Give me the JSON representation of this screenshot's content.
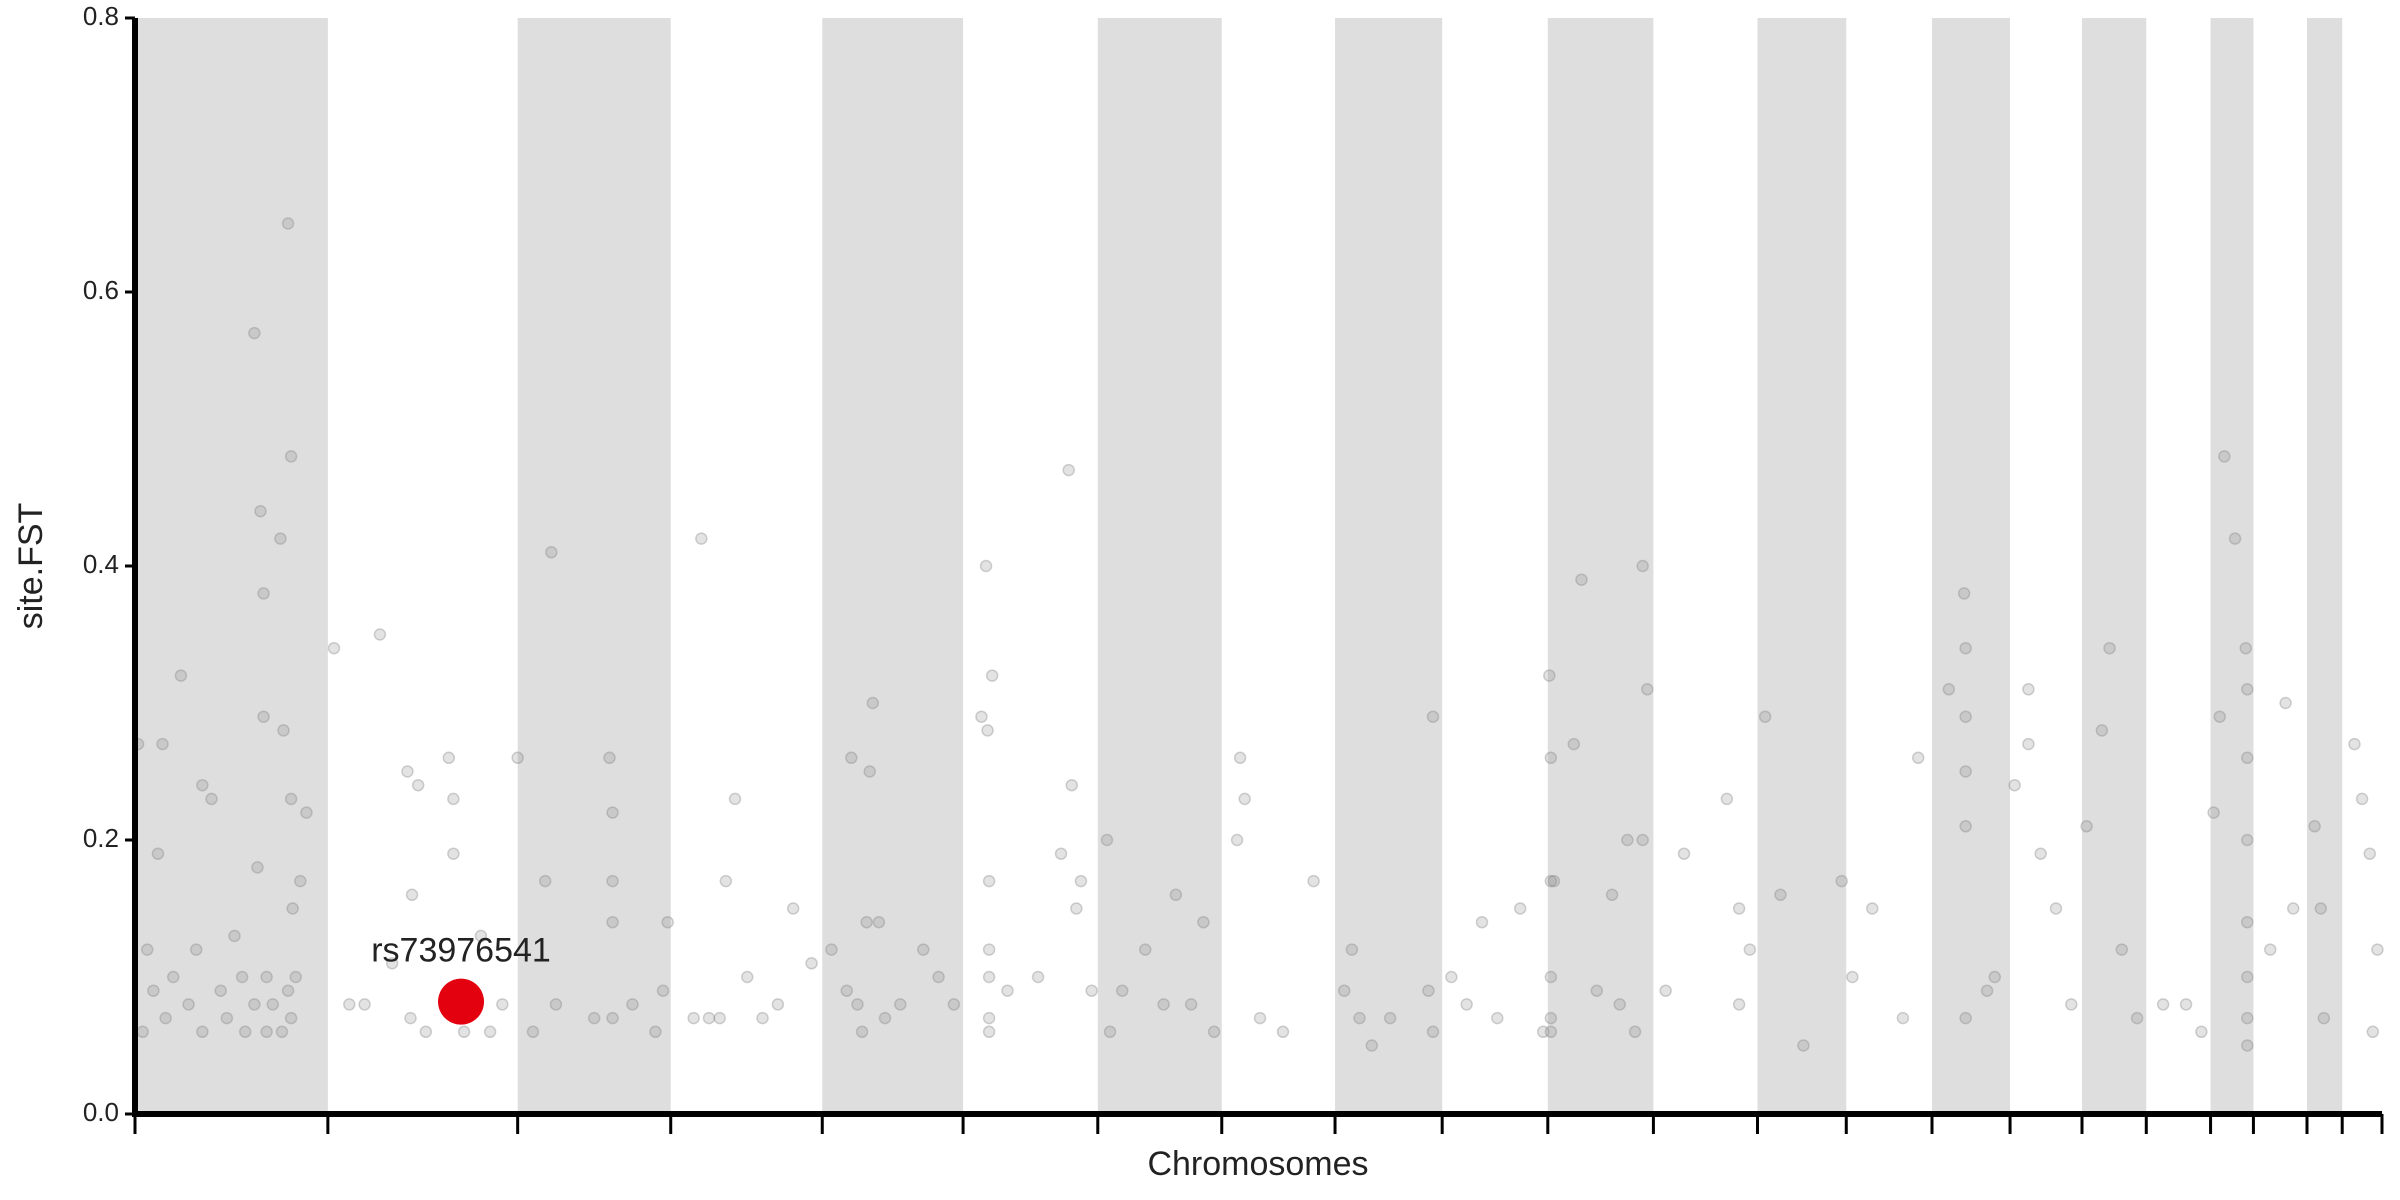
{
  "chart_data": {
    "type": "scatter",
    "xlabel": "Chromosomes",
    "ylabel": "site.FST",
    "xlim": [
      0,
      1468
    ],
    "ylim": [
      0,
      0.8
    ],
    "xticks": [
      0,
      126,
      250,
      350,
      449,
      541,
      629,
      710,
      784,
      854,
      923,
      992,
      1060,
      1118,
      1174,
      1225,
      1272,
      1314,
      1356,
      1384,
      1419,
      1442,
      1468
    ],
    "yticks": [
      {
        "value": 0,
        "label": "0.0"
      },
      0.2,
      0.4,
      0.6,
      0.8
    ],
    "color": "#808080",
    "band_color": "#dedede",
    "x": [
      2,
      5,
      8,
      12,
      15,
      18,
      20,
      25,
      30,
      35,
      40,
      44,
      44,
      50,
      56,
      60,
      65,
      70,
      78,
      80,
      82,
      84,
      86,
      86,
      84,
      90,
      95,
      97,
      100,
      102,
      102,
      102,
      103,
      105,
      108,
      112,
      100,
      96,
      78,
      72,
      130,
      140,
      150,
      160,
      168,
      178,
      180,
      181,
      185,
      190,
      205,
      208,
      208,
      215,
      226,
      232,
      240,
      250,
      260,
      268,
      272,
      275,
      300,
      310,
      312,
      312,
      312,
      312,
      325,
      340,
      345,
      348,
      365,
      370,
      375,
      382,
      392,
      386,
      400,
      410,
      420,
      430,
      442,
      455,
      465,
      468,
      472,
      475,
      478,
      480,
      482,
      486,
      490,
      500,
      515,
      525,
      535,
      553,
      556,
      557,
      558,
      558,
      558,
      558,
      558,
      560,
      570,
      590,
      605,
      610,
      612,
      615,
      618,
      625,
      635,
      637,
      645,
      660,
      672,
      680,
      690,
      698,
      705,
      722,
      720,
      725,
      735,
      750,
      770,
      790,
      795,
      800,
      808,
      820,
      845,
      848,
      848,
      860,
      870,
      880,
      890,
      905,
      920,
      924,
      925,
      925,
      925,
      925,
      925,
      927,
      940,
      945,
      955,
      965,
      970,
      975,
      985,
      988,
      985,
      980,
      1000,
      1012,
      1040,
      1048,
      1048,
      1055,
      1065,
      1075,
      1090,
      1115,
      1122,
      1135,
      1155,
      1165,
      1185,
      1195,
      1196,
      1196,
      1196,
      1196,
      1196,
      1210,
      1215,
      1228,
      1237,
      1237,
      1245,
      1255,
      1265,
      1275,
      1285,
      1290,
      1298,
      1308,
      1325,
      1340,
      1350,
      1358,
      1362,
      1365,
      1372,
      1379,
      1380,
      1380,
      1380,
      1380,
      1380,
      1380,
      1380,
      1395,
      1405,
      1410,
      1424,
      1428,
      1430,
      1450,
      1455,
      1460,
      1462,
      1465
    ],
    "values": [
      0.27,
      0.06,
      0.12,
      0.09,
      0.19,
      0.27,
      0.07,
      0.1,
      0.32,
      0.08,
      0.12,
      0.24,
      0.06,
      0.23,
      0.09,
      0.07,
      0.13,
      0.1,
      0.57,
      0.18,
      0.44,
      0.38,
      0.1,
      0.06,
      0.29,
      0.08,
      0.42,
      0.28,
      0.65,
      0.48,
      0.23,
      0.07,
      0.15,
      0.1,
      0.17,
      0.22,
      0.09,
      0.06,
      0.08,
      0.06,
      0.34,
      0.08,
      0.08,
      0.35,
      0.11,
      0.25,
      0.07,
      0.16,
      0.24,
      0.06,
      0.26,
      0.23,
      0.19,
      0.06,
      0.13,
      0.06,
      0.08,
      0.26,
      0.06,
      0.17,
      0.41,
      0.08,
      0.07,
      0.26,
      0.22,
      0.17,
      0.14,
      0.07,
      0.08,
      0.06,
      0.09,
      0.14,
      0.07,
      0.42,
      0.07,
      0.07,
      0.23,
      0.17,
      0.1,
      0.07,
      0.08,
      0.15,
      0.11,
      0.12,
      0.09,
      0.26,
      0.08,
      0.06,
      0.14,
      0.25,
      0.3,
      0.14,
      0.07,
      0.08,
      0.12,
      0.1,
      0.08,
      0.29,
      0.4,
      0.28,
      0.17,
      0.12,
      0.1,
      0.07,
      0.06,
      0.32,
      0.09,
      0.1,
      0.19,
      0.47,
      0.24,
      0.15,
      0.17,
      0.09,
      0.2,
      0.06,
      0.09,
      0.12,
      0.08,
      0.16,
      0.08,
      0.14,
      0.06,
      0.26,
      0.2,
      0.23,
      0.07,
      0.06,
      0.17,
      0.09,
      0.12,
      0.07,
      0.05,
      0.07,
      0.09,
      0.29,
      0.06,
      0.1,
      0.08,
      0.14,
      0.07,
      0.15,
      0.06,
      0.32,
      0.26,
      0.17,
      0.1,
      0.07,
      0.06,
      0.17,
      0.27,
      0.39,
      0.09,
      0.16,
      0.08,
      0.2,
      0.4,
      0.31,
      0.2,
      0.06,
      0.09,
      0.19,
      0.23,
      0.15,
      0.08,
      0.12,
      0.29,
      0.16,
      0.05,
      0.17,
      0.1,
      0.15,
      0.07,
      0.26,
      0.31,
      0.38,
      0.34,
      0.29,
      0.25,
      0.21,
      0.07,
      0.09,
      0.1,
      0.24,
      0.27,
      0.31,
      0.19,
      0.15,
      0.08,
      0.21,
      0.28,
      0.34,
      0.12,
      0.07,
      0.08,
      0.08,
      0.06,
      0.22,
      0.29,
      0.48,
      0.42,
      0.34,
      0.31,
      0.26,
      0.2,
      0.14,
      0.1,
      0.07,
      0.05,
      0.12,
      0.3,
      0.15,
      0.21,
      0.15,
      0.07,
      0.27,
      0.23,
      0.19,
      0.06,
      0.12
    ],
    "annotations": [
      {
        "label": "rs73976541",
        "x": 213,
        "y": 0.082,
        "color": "#e3000f"
      }
    ]
  }
}
